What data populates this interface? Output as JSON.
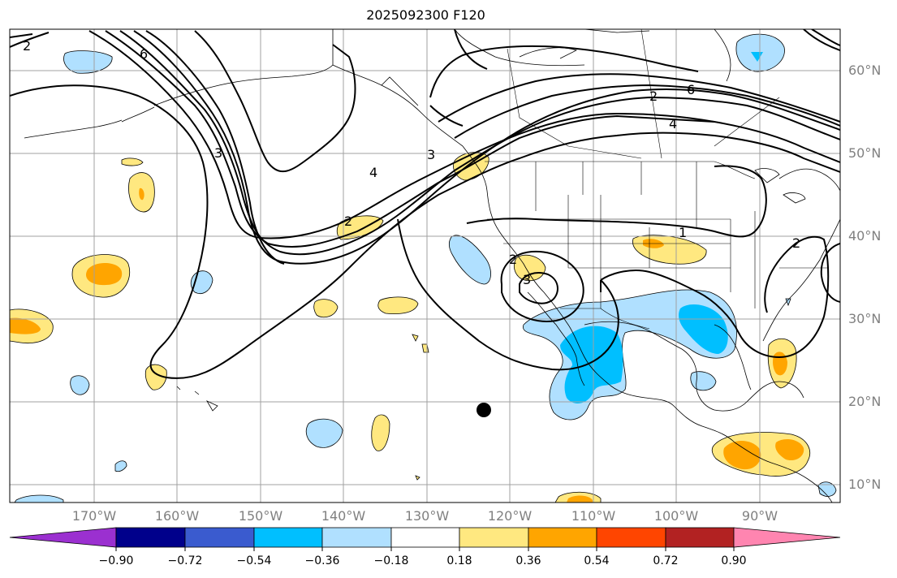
{
  "title": "2025092300 F120",
  "lat_labels": [
    "60°N",
    "50°N",
    "40°N",
    "30°N",
    "20°N",
    "10°N"
  ],
  "lon_labels": [
    "170°W",
    "160°W",
    "150°W",
    "140°W",
    "130°W",
    "120°W",
    "110°W",
    "100°W",
    "90°W"
  ],
  "contour_labels": [
    "2",
    "6",
    "3",
    "4",
    "2",
    "3",
    "2",
    "6",
    "4",
    "1",
    "2",
    "3",
    "2"
  ],
  "colorbar": {
    "ticks": [
      "−0.90",
      "−0.72",
      "−0.54",
      "−0.36",
      "−0.18",
      "0.18",
      "0.36",
      "0.54",
      "0.72",
      "0.90"
    ],
    "colors": [
      "#9b30d0",
      "#00008b",
      "#3a5bcf",
      "#00bfff",
      "#b0e0ff",
      "#ffffff",
      "#ffe880",
      "#ffa500",
      "#ff4500",
      "#b22222",
      "#ff85b0"
    ]
  },
  "colors": {
    "neg_light": "#b0e0ff",
    "neg_mid": "#00bfff",
    "pos_light": "#ffe880",
    "pos_mid": "#ffa500",
    "grid": "#a0a0a0",
    "label": "#808080"
  }
}
